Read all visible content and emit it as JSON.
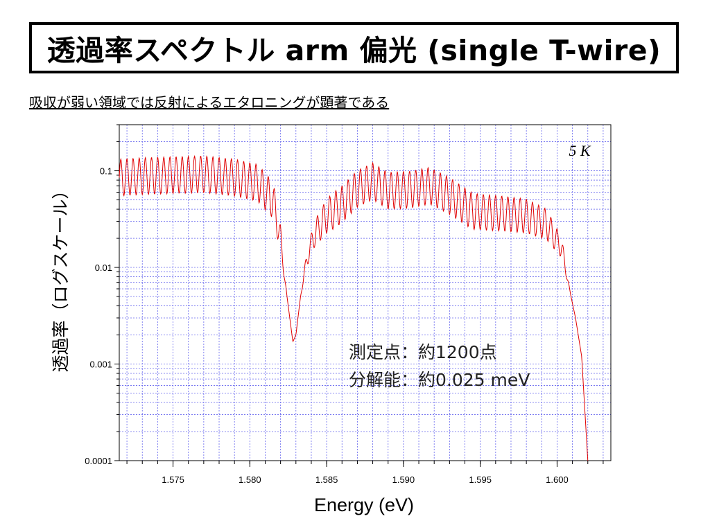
{
  "slide": {
    "title": "透過率スペクトル arm 偏光 (single T-wire)",
    "subtitle": "吸収が弱い領域では反射によるエタロニングが顕著である"
  },
  "chart_data": {
    "type": "line",
    "xlabel": "Energy (eV)",
    "ylabel": "透過率（ログスケール）",
    "xlim": [
      1.5715,
      1.6035
    ],
    "ylim": [
      0.0001,
      0.3
    ],
    "yscale": "log",
    "grid": true,
    "x_ticks": [
      {
        "value": 1.575,
        "label": "1.575"
      },
      {
        "value": 1.58,
        "label": "1.580"
      },
      {
        "value": 1.585,
        "label": "1.585"
      },
      {
        "value": 1.59,
        "label": "1.590"
      },
      {
        "value": 1.595,
        "label": "1.595"
      },
      {
        "value": 1.6,
        "label": "1.600"
      }
    ],
    "y_ticks": [
      {
        "value": 0.1,
        "label": "0.1"
      },
      {
        "value": 0.01,
        "label": "0.01"
      },
      {
        "value": 0.001,
        "label": "0.001"
      },
      {
        "value": 0.0001,
        "label": "0.0001"
      }
    ],
    "annotations": {
      "temperature": "5 K",
      "measurement_points": "測定点：約1200点",
      "resolution": "分解能：約0.025 meV"
    },
    "series": [
      {
        "color": "#e00000",
        "etalon_period_eV": 0.0004,
        "etalon_modulation": 1.55,
        "envelope": [
          [
            1.5715,
            0.085
          ],
          [
            1.573,
            0.088
          ],
          [
            1.575,
            0.09
          ],
          [
            1.577,
            0.092
          ],
          [
            1.579,
            0.085
          ],
          [
            1.5805,
            0.075
          ],
          [
            1.5815,
            0.05
          ],
          [
            1.582,
            0.02
          ],
          [
            1.5823,
            0.007
          ],
          [
            1.5826,
            0.003
          ],
          [
            1.5828,
            0.0017
          ],
          [
            1.583,
            0.002
          ],
          [
            1.5833,
            0.005
          ],
          [
            1.5837,
            0.012
          ],
          [
            1.5842,
            0.022
          ],
          [
            1.585,
            0.034
          ],
          [
            1.586,
            0.045
          ],
          [
            1.587,
            0.065
          ],
          [
            1.588,
            0.078
          ],
          [
            1.589,
            0.062
          ],
          [
            1.5905,
            0.064
          ],
          [
            1.5917,
            0.07
          ],
          [
            1.593,
            0.055
          ],
          [
            1.5945,
            0.038
          ],
          [
            1.5965,
            0.036
          ],
          [
            1.598,
            0.034
          ],
          [
            1.5993,
            0.028
          ],
          [
            1.6003,
            0.016
          ],
          [
            1.6008,
            0.006
          ],
          [
            1.6012,
            0.003
          ],
          [
            1.6016,
            0.0012
          ],
          [
            1.602,
            0.0001
          ]
        ]
      }
    ]
  }
}
